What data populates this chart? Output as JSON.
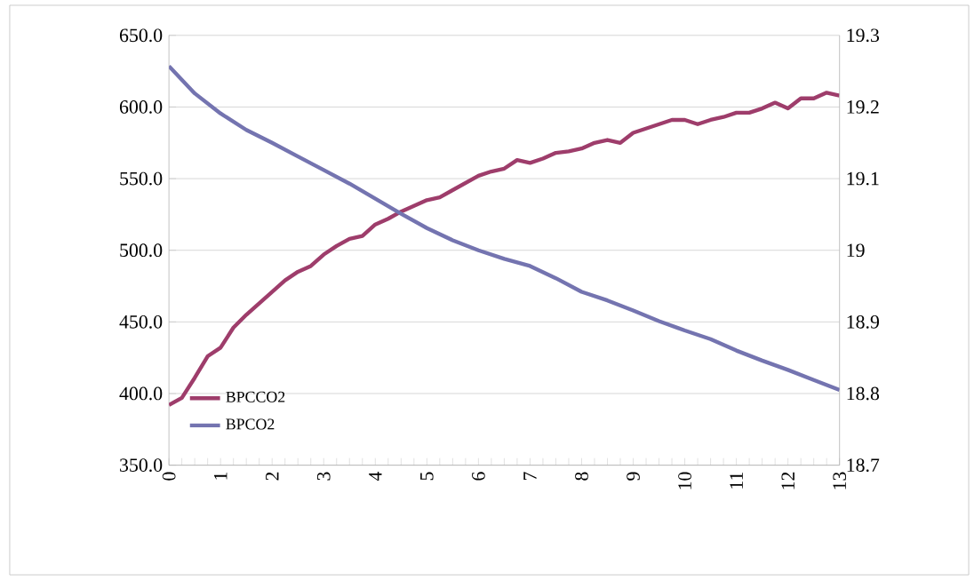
{
  "chart_data": {
    "type": "line",
    "series": [
      {
        "name": "BPCCO2",
        "color": "#9e3d6b",
        "x": [
          0,
          0.25,
          0.5,
          0.75,
          1,
          1.25,
          1.5,
          1.75,
          2,
          2.25,
          2.5,
          2.75,
          3,
          3.25,
          3.5,
          3.75,
          4,
          4.25,
          4.5,
          4.75,
          5,
          5.25,
          5.5,
          5.75,
          6,
          6.25,
          6.5,
          6.75,
          7,
          7.25,
          7.5,
          7.75,
          8,
          8.25,
          8.5,
          8.75,
          9,
          9.25,
          9.5,
          9.75,
          10,
          10.25,
          10.5,
          10.75,
          11,
          11.25,
          11.5,
          11.75,
          12,
          12.25,
          12.5,
          12.75,
          13
        ],
        "values": [
          392,
          397,
          411,
          426,
          432,
          446,
          455,
          463,
          471,
          479,
          485,
          489,
          497,
          503,
          508,
          510,
          518,
          522,
          527,
          531,
          535,
          537,
          542,
          547,
          552,
          555,
          557,
          563,
          561,
          564,
          568,
          569,
          571,
          575,
          577,
          575,
          582,
          585,
          588,
          591,
          591,
          588,
          591,
          593,
          596,
          596,
          599,
          603,
          599,
          606,
          606,
          610,
          608
        ]
      },
      {
        "name": "BPCO2",
        "color": "#7474b0",
        "axis": "y2",
        "x": [
          0,
          0.5,
          1,
          1.5,
          2,
          2.5,
          3,
          3.5,
          4,
          4.5,
          5,
          5.5,
          6,
          6.5,
          7,
          7.5,
          8,
          8.5,
          9,
          9.5,
          10,
          10.5,
          11,
          11.5,
          12,
          12.5,
          13
        ],
        "values": [
          19.257,
          19.219,
          19.191,
          19.168,
          19.15,
          19.131,
          19.112,
          19.093,
          19.072,
          19.051,
          19.031,
          19.014,
          19,
          18.988,
          18.978,
          18.961,
          18.942,
          18.93,
          18.916,
          18.901,
          18.888,
          18.876,
          18.86,
          18.846,
          18.833,
          18.819,
          18.805
        ]
      }
    ],
    "xlim": [
      0,
      13
    ],
    "xticks": [
      0,
      1,
      2,
      3,
      4,
      5,
      6,
      7,
      8,
      9,
      10,
      11,
      12,
      13
    ],
    "ylim": [
      350,
      650
    ],
    "yticks": [
      {
        "value": 350,
        "label": "350.0"
      },
      {
        "value": 400,
        "label": "400.0"
      },
      {
        "value": 450,
        "label": "450.0"
      },
      {
        "value": 500,
        "label": "500.0"
      },
      {
        "value": 550,
        "label": "550.0"
      },
      {
        "value": 600,
        "label": "600.0"
      },
      {
        "value": 650,
        "label": "650.0"
      }
    ],
    "y2lim": [
      18.7,
      19.3
    ],
    "y2ticks": [
      18.7,
      18.8,
      18.9,
      19,
      19.1,
      19.2,
      19.3
    ],
    "grid": "y",
    "legend": "bottom left",
    "marker": "none",
    "line_style": "solid"
  }
}
